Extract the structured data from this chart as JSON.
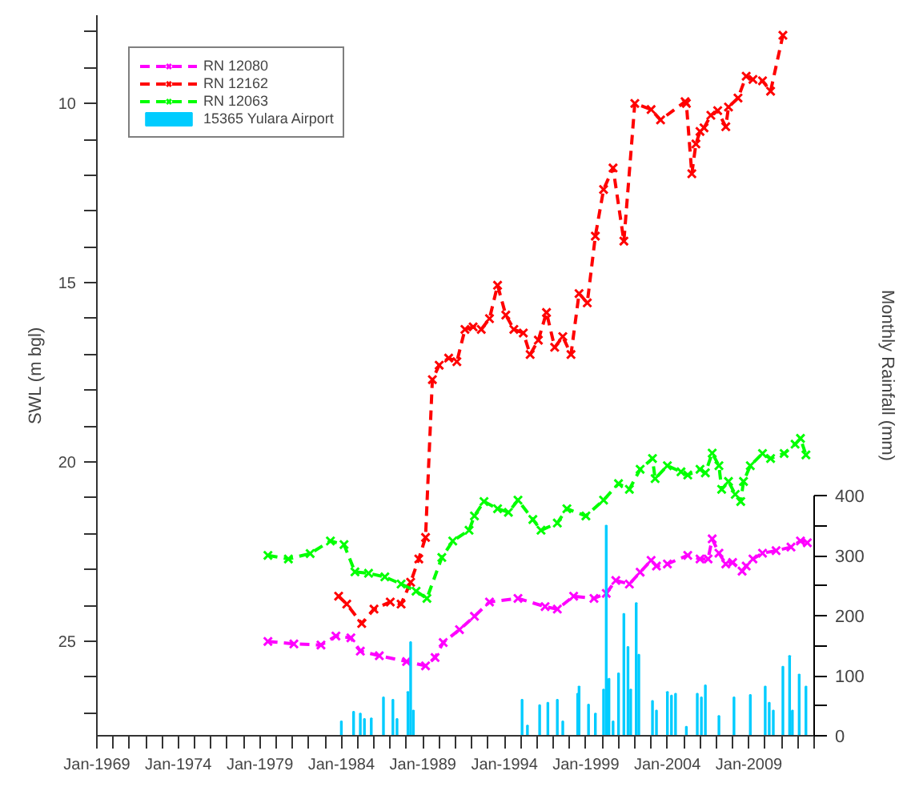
{
  "chart_data": {
    "type": "line",
    "ylabel": "SWL (m bgl)",
    "y2label": "Monthly Rainfall (mm)",
    "xlim": [
      "1969-01",
      "2013-01"
    ],
    "xticks": [
      {
        "value": "1969-01",
        "label": "Jan-1969"
      },
      {
        "value": "1970-01",
        "label": null
      },
      {
        "value": "1971-01",
        "label": null
      },
      {
        "value": "1972-01",
        "label": null
      },
      {
        "value": "1973-01",
        "label": null
      },
      {
        "value": "1974-01",
        "label": "Jan-1974"
      },
      {
        "value": "1975-01",
        "label": null
      },
      {
        "value": "1976-01",
        "label": null
      },
      {
        "value": "1977-01",
        "label": null
      },
      {
        "value": "1978-01",
        "label": null
      },
      {
        "value": "1979-01",
        "label": "Jan-1979"
      },
      {
        "value": "1980-01",
        "label": null
      },
      {
        "value": "1981-01",
        "label": null
      },
      {
        "value": "1982-01",
        "label": null
      },
      {
        "value": "1983-01",
        "label": null
      },
      {
        "value": "1984-01",
        "label": "Jan-1984"
      },
      {
        "value": "1985-01",
        "label": null
      },
      {
        "value": "1986-01",
        "label": null
      },
      {
        "value": "1987-01",
        "label": null
      },
      {
        "value": "1988-01",
        "label": null
      },
      {
        "value": "1989-01",
        "label": "Jan-1989"
      },
      {
        "value": "1990-01",
        "label": null
      },
      {
        "value": "1991-01",
        "label": null
      },
      {
        "value": "1992-01",
        "label": null
      },
      {
        "value": "1993-01",
        "label": null
      },
      {
        "value": "1994-01",
        "label": "Jan-1994"
      },
      {
        "value": "1995-01",
        "label": null
      },
      {
        "value": "1996-01",
        "label": null
      },
      {
        "value": "1997-01",
        "label": null
      },
      {
        "value": "1998-01",
        "label": null
      },
      {
        "value": "1999-01",
        "label": "Jan-1999"
      },
      {
        "value": "2000-01",
        "label": null
      },
      {
        "value": "2001-01",
        "label": null
      },
      {
        "value": "2002-01",
        "label": null
      },
      {
        "value": "2003-01",
        "label": null
      },
      {
        "value": "2004-01",
        "label": "Jan-2004"
      },
      {
        "value": "2005-01",
        "label": null
      },
      {
        "value": "2006-01",
        "label": null
      },
      {
        "value": "2007-01",
        "label": null
      },
      {
        "value": "2008-01",
        "label": null
      },
      {
        "value": "2009-01",
        "label": "Jan-2009"
      },
      {
        "value": "2010-01",
        "label": null
      },
      {
        "value": "2011-01",
        "label": null
      },
      {
        "value": "2012-01",
        "label": null
      },
      {
        "value": "2013-01",
        "label": null
      }
    ],
    "ylim": [
      27.63,
      7.54
    ],
    "yticks": [
      {
        "value": 8,
        "label": null
      },
      {
        "value": 9,
        "label": null
      },
      10,
      {
        "value": 11,
        "label": null
      },
      {
        "value": 12,
        "label": null
      },
      {
        "value": 13,
        "label": null
      },
      {
        "value": 14,
        "label": null
      },
      15,
      {
        "value": 16,
        "label": null
      },
      {
        "value": 17,
        "label": null
      },
      {
        "value": 18,
        "label": null
      },
      {
        "value": 19,
        "label": null
      },
      20,
      {
        "value": 21,
        "label": null
      },
      {
        "value": 22,
        "label": null
      },
      {
        "value": 23,
        "label": null
      },
      {
        "value": 24,
        "label": null
      },
      25,
      {
        "value": 26,
        "label": null
      },
      {
        "value": 27,
        "label": null
      }
    ],
    "y2lim": [
      0,
      1200
    ],
    "y2ticks": [
      0,
      {
        "value": 50,
        "label": null
      },
      100,
      {
        "value": 150,
        "label": null
      },
      200,
      {
        "value": 250,
        "label": null
      },
      300,
      {
        "value": 350,
        "label": null
      },
      400
    ],
    "grid": false,
    "legend": "top left",
    "marker": "cross",
    "line_style": "dashed",
    "series": [
      {
        "name": "RN 12080",
        "color": "#ff00ff",
        "x": [
          "1979-07",
          "1981-02",
          "1982-10",
          "1983-09",
          "1984-08",
          "1985-03",
          "1986-05",
          "1988-01",
          "1989-03",
          "1989-10",
          "1990-04",
          "1991-04",
          "1992-03",
          "1993-02",
          "1994-11",
          "1996-07",
          "1997-04",
          "1998-04",
          "1999-07",
          "2000-04",
          "2000-11",
          "2001-09",
          "2002-05",
          "2003-01",
          "2003-05",
          "2004-01",
          "2005-04",
          "2006-01",
          "2006-07",
          "2006-10",
          "2007-03",
          "2007-08",
          "2008-01",
          "2008-08",
          "2008-11",
          "2009-04",
          "2009-11",
          "2010-09",
          "2011-08",
          "2012-03",
          "2012-08"
        ],
        "values": [
          25.0,
          25.07,
          25.1,
          24.85,
          24.9,
          25.27,
          25.4,
          25.56,
          25.68,
          25.45,
          25.03,
          24.67,
          24.3,
          23.9,
          23.8,
          24.03,
          24.1,
          23.74,
          23.8,
          23.66,
          23.3,
          23.4,
          23.07,
          22.74,
          22.9,
          22.84,
          22.6,
          22.7,
          22.7,
          22.14,
          22.54,
          22.84,
          22.8,
          23.04,
          22.9,
          22.7,
          22.54,
          22.47,
          22.37,
          22.2,
          22.25
        ]
      },
      {
        "name": "RN 12162",
        "color": "#ff0000",
        "x": [
          "1983-11",
          "1984-05",
          "1985-04",
          "1986-01",
          "1987-01",
          "1987-09",
          "1988-04",
          "1988-10",
          "1989-03",
          "1989-08",
          "1990-01",
          "1990-08",
          "1991-02",
          "1991-08",
          "1992-02",
          "1992-08",
          "1993-02",
          "1993-08",
          "1994-02",
          "1994-08",
          "1995-03",
          "1995-08",
          "1996-02",
          "1996-08",
          "1997-02",
          "1997-08",
          "1998-02",
          "1998-08",
          "1999-02",
          "1999-08",
          "2000-02",
          "2000-09",
          "2001-05",
          "2002-01",
          "2003-01",
          "2003-08",
          "2005-02",
          "2005-03",
          "2005-07",
          "2005-10",
          "2006-01",
          "2006-04",
          "2006-09",
          "2007-02",
          "2007-08",
          "2007-10",
          "2008-05",
          "2008-11",
          "2009-04",
          "2009-11",
          "2010-05",
          "2011-02"
        ],
        "values": [
          23.74,
          23.96,
          24.5,
          24.1,
          23.9,
          23.96,
          23.35,
          22.7,
          22.1,
          17.7,
          17.3,
          17.1,
          17.2,
          16.3,
          16.23,
          16.3,
          16.0,
          15.07,
          15.9,
          16.3,
          16.4,
          17.0,
          16.6,
          15.83,
          16.8,
          16.5,
          17.0,
          15.3,
          15.56,
          13.7,
          12.4,
          11.8,
          13.84,
          10.0,
          10.17,
          10.46,
          9.95,
          10.0,
          11.96,
          11.13,
          10.78,
          10.68,
          10.33,
          10.2,
          10.65,
          10.1,
          9.85,
          9.24,
          9.33,
          9.37,
          9.66,
          8.1
        ]
      },
      {
        "name": "RN 12063",
        "color": "#00ff00",
        "x": [
          "1979-07",
          "1980-10",
          "1982-02",
          "1983-05",
          "1984-03",
          "1984-11",
          "1985-09",
          "1986-09",
          "1987-09",
          "1988-08",
          "1989-04",
          "1990-03",
          "1990-11",
          "1991-11",
          "1992-03",
          "1992-10",
          "1993-08",
          "1994-04",
          "1994-11",
          "1995-10",
          "1996-04",
          "1997-04",
          "1997-11",
          "1999-01",
          "2000-02",
          "2001-01",
          "2001-09",
          "2002-05",
          "2003-02",
          "2003-04",
          "2004-01",
          "2004-11",
          "2005-04",
          "2006-01",
          "2006-05",
          "2006-10",
          "2007-03",
          "2007-05",
          "2007-10",
          "2008-03",
          "2008-07",
          "2008-09",
          "2009-02",
          "2009-11",
          "2010-05",
          "2011-03",
          "2011-11",
          "2012-03",
          "2012-07"
        ],
        "values": [
          22.6,
          22.7,
          22.55,
          22.2,
          22.3,
          23.06,
          23.1,
          23.2,
          23.4,
          23.6,
          23.8,
          22.66,
          22.2,
          21.9,
          21.5,
          21.1,
          21.3,
          21.4,
          21.06,
          21.6,
          21.9,
          21.7,
          21.3,
          21.5,
          21.06,
          20.6,
          20.76,
          20.2,
          19.9,
          20.46,
          20.1,
          20.27,
          20.36,
          20.2,
          20.3,
          19.75,
          20.1,
          20.76,
          20.54,
          20.9,
          21.1,
          20.54,
          20.1,
          19.76,
          19.9,
          19.76,
          19.5,
          19.34,
          19.8
        ]
      },
      {
        "name": "15365 Yulara Airport",
        "type": "bar",
        "axis": "y2",
        "color": "#00ccff",
        "x": [
          "1984-01",
          "1984-10",
          "1985-03",
          "1985-06",
          "1985-11",
          "1986-08",
          "1987-03",
          "1987-06",
          "1988-02",
          "1988-04",
          "1988-06",
          "1995-02",
          "1995-06",
          "1996-03",
          "1996-09",
          "1997-04",
          "1997-08",
          "1998-07",
          "1998-08",
          "1999-03",
          "1999-08",
          "2000-02",
          "2000-04",
          "2000-06",
          "2000-09",
          "2001-01",
          "2001-05",
          "2001-08",
          "2001-10",
          "2002-02",
          "2002-04",
          "2003-02",
          "2003-05",
          "2004-01",
          "2004-04",
          "2004-07",
          "2005-03",
          "2005-11",
          "2006-02",
          "2006-05",
          "2007-03",
          "2008-02",
          "2009-02",
          "2010-01",
          "2010-04",
          "2010-07",
          "2011-02",
          "2011-07",
          "2011-09",
          "2012-02",
          "2012-07"
        ],
        "values": [
          24,
          40,
          37,
          28,
          29,
          64,
          60,
          28,
          73,
          156,
          42,
          60,
          17,
          51,
          55,
          60,
          24,
          70,
          82,
          52,
          37,
          77,
          350,
          95,
          24,
          104,
          203,
          148,
          77,
          221,
          135,
          58,
          42,
          73,
          67,
          70,
          15,
          70,
          64,
          84,
          33,
          64,
          68,
          82,
          55,
          42,
          115,
          133,
          42,
          102,
          82
        ]
      }
    ]
  }
}
